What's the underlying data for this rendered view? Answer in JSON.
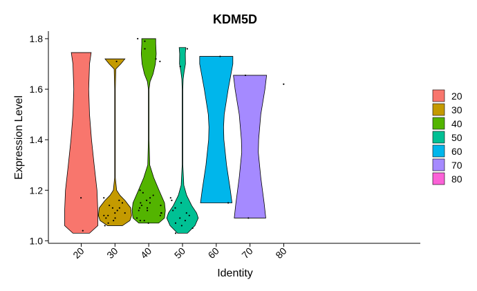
{
  "chart_data": {
    "type": "violin",
    "title": "KDM5D",
    "xlabel": "Identity",
    "ylabel": "Expression Level",
    "ylim": [
      0.99,
      1.83
    ],
    "yticks": [
      1.0,
      1.2,
      1.4,
      1.6,
      1.8
    ],
    "ytick_labels": [
      "1.0",
      "1.2",
      "1.4",
      "1.6",
      "1.8"
    ],
    "categories": [
      "20",
      "30",
      "40",
      "50",
      "60",
      "70",
      "80"
    ],
    "legend": {
      "position": "right",
      "entries": [
        "20",
        "30",
        "40",
        "50",
        "60",
        "70",
        "80"
      ]
    },
    "colors": {
      "20": "#F8766D",
      "30": "#C49A00",
      "40": "#53B400",
      "50": "#00C094",
      "60": "#00B6EB",
      "70": "#A58AFF",
      "80": "#FB61D7"
    },
    "violins": [
      {
        "identity": "20",
        "profile": [
          [
            1.03,
            0.5
          ],
          [
            1.06,
            1.0
          ],
          [
            1.12,
            1.0
          ],
          [
            1.2,
            0.95
          ],
          [
            1.3,
            0.78
          ],
          [
            1.4,
            0.62
          ],
          [
            1.5,
            0.5
          ],
          [
            1.6,
            0.45
          ],
          [
            1.7,
            0.5
          ],
          [
            1.745,
            0.6
          ]
        ]
      },
      {
        "identity": "30",
        "profile": [
          [
            1.06,
            0.45
          ],
          [
            1.08,
            0.9
          ],
          [
            1.1,
            1.0
          ],
          [
            1.13,
            0.95
          ],
          [
            1.16,
            0.6
          ],
          [
            1.18,
            0.3
          ],
          [
            1.2,
            0.1
          ],
          [
            1.25,
            0.02
          ],
          [
            1.4,
            0.02
          ],
          [
            1.6,
            0.02
          ],
          [
            1.68,
            0.05
          ],
          [
            1.7,
            0.35
          ],
          [
            1.72,
            0.6
          ]
        ]
      },
      {
        "identity": "40",
        "profile": [
          [
            1.07,
            0.6
          ],
          [
            1.09,
            0.95
          ],
          [
            1.12,
            1.0
          ],
          [
            1.15,
            0.95
          ],
          [
            1.2,
            0.62
          ],
          [
            1.25,
            0.3
          ],
          [
            1.3,
            0.06
          ],
          [
            1.4,
            0.02
          ],
          [
            1.5,
            0.02
          ],
          [
            1.6,
            0.02
          ],
          [
            1.63,
            0.08
          ],
          [
            1.66,
            0.26
          ],
          [
            1.7,
            0.4
          ],
          [
            1.74,
            0.45
          ],
          [
            1.78,
            0.42
          ],
          [
            1.8,
            0.42
          ]
        ]
      },
      {
        "identity": "50",
        "profile": [
          [
            1.03,
            0.3
          ],
          [
            1.06,
            0.75
          ],
          [
            1.09,
            0.95
          ],
          [
            1.11,
            0.85
          ],
          [
            1.14,
            0.55
          ],
          [
            1.18,
            0.25
          ],
          [
            1.22,
            0.08
          ],
          [
            1.3,
            0.02
          ],
          [
            1.4,
            0.02
          ],
          [
            1.5,
            0.02
          ],
          [
            1.6,
            0.02
          ],
          [
            1.64,
            0.04
          ],
          [
            1.67,
            0.1
          ],
          [
            1.7,
            0.18
          ],
          [
            1.74,
            0.17
          ],
          [
            1.765,
            0.2
          ]
        ]
      },
      {
        "identity": "60",
        "profile": [
          [
            1.15,
            0.95
          ],
          [
            1.2,
            0.85
          ],
          [
            1.3,
            0.62
          ],
          [
            1.4,
            0.46
          ],
          [
            1.45,
            0.44
          ],
          [
            1.5,
            0.48
          ],
          [
            1.6,
            0.72
          ],
          [
            1.7,
            1.0
          ],
          [
            1.73,
            1.0
          ]
        ]
      },
      {
        "identity": "70",
        "profile": [
          [
            1.09,
            0.95
          ],
          [
            1.15,
            0.85
          ],
          [
            1.25,
            0.65
          ],
          [
            1.35,
            0.5
          ],
          [
            1.4,
            0.52
          ],
          [
            1.5,
            0.65
          ],
          [
            1.6,
            0.9
          ],
          [
            1.655,
            1.0
          ]
        ]
      }
    ],
    "points": [
      {
        "identity": "20",
        "values": [
          1.17,
          1.04
        ]
      },
      {
        "identity": "30",
        "values": [
          1.06,
          1.07,
          1.08,
          1.09,
          1.1,
          1.11,
          1.12,
          1.13,
          1.14,
          1.15,
          1.16,
          1.17,
          1.11,
          1.1,
          1.13,
          1.09,
          1.71
        ]
      },
      {
        "identity": "40",
        "values": [
          1.07,
          1.08,
          1.09,
          1.1,
          1.11,
          1.12,
          1.13,
          1.14,
          1.15,
          1.16,
          1.17,
          1.18,
          1.19,
          1.2,
          1.11,
          1.12,
          1.14,
          1.15,
          1.08,
          1.13,
          1.72,
          1.76,
          1.79,
          1.8,
          1.71
        ]
      },
      {
        "identity": "50",
        "values": [
          1.03,
          1.05,
          1.06,
          1.07,
          1.08,
          1.09,
          1.1,
          1.11,
          1.12,
          1.13,
          1.15,
          1.16,
          1.17,
          1.69,
          1.76
        ]
      },
      {
        "identity": "60",
        "values": [
          1.73,
          1.15
        ]
      },
      {
        "identity": "70",
        "values": [
          1.655,
          1.09
        ]
      },
      {
        "identity": "80",
        "values": [
          1.62
        ]
      }
    ]
  }
}
